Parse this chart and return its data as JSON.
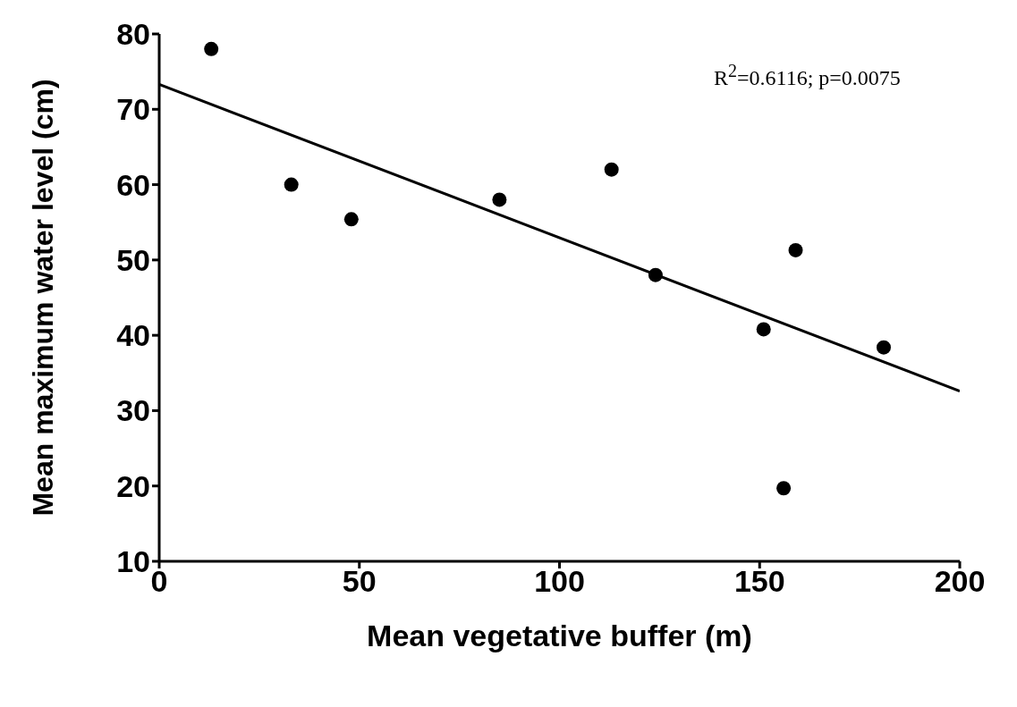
{
  "chart_data": {
    "type": "scatter",
    "xlabel": "Mean vegetative buffer (m)",
    "ylabel": "Mean maximum water level (cm)",
    "annotations": [
      "R$^{2}$=0.6116; p=0.0075"
    ],
    "xlim": [
      0,
      200
    ],
    "xticks": [
      0,
      50,
      100,
      150,
      200
    ],
    "ylim": [
      10,
      80
    ],
    "yticks": [
      10,
      20,
      30,
      40,
      50,
      60,
      70,
      80
    ],
    "grid": false,
    "legend": false,
    "series": [
      {
        "marker": "circle",
        "color": "#000000",
        "x": [
          13,
          33,
          48,
          85,
          113,
          124,
          151,
          156,
          159,
          181
        ],
        "values": [
          78,
          60,
          55.4,
          58,
          62,
          48,
          40.8,
          19.7,
          51.3,
          38.4
        ]
      },
      {
        "type": "line",
        "color": "#000000",
        "line_style": "solid",
        "x": [
          0,
          200
        ],
        "values": [
          73.3,
          32.6
        ]
      }
    ]
  }
}
